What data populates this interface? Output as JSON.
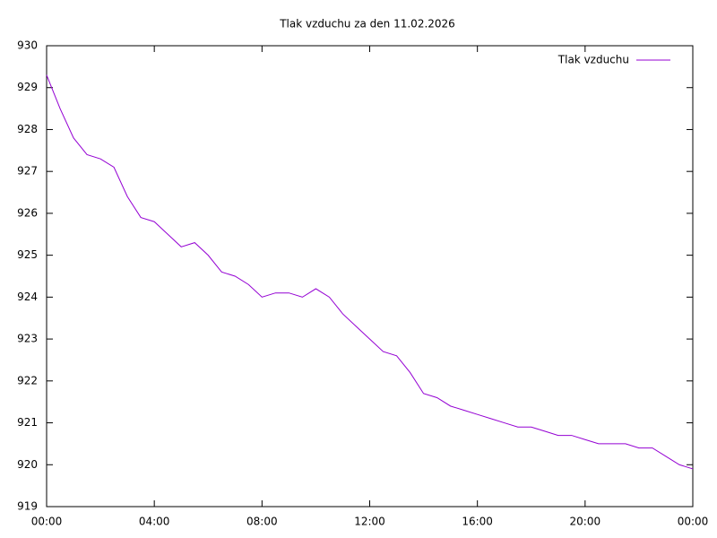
{
  "chart_data": {
    "type": "line",
    "title": "Tlak vzduchu za den 11.02.2026",
    "x": [
      0,
      0.5,
      1,
      1.5,
      2,
      2.5,
      3,
      3.5,
      4,
      4.5,
      5,
      5.5,
      6,
      6.5,
      7,
      7.5,
      8,
      8.5,
      9,
      9.5,
      10,
      10.5,
      11,
      11.5,
      12,
      12.5,
      13,
      13.5,
      14,
      14.5,
      15,
      15.5,
      16,
      16.5,
      17,
      17.5,
      18,
      18.5,
      19,
      19.5,
      20,
      20.5,
      21,
      21.5,
      22,
      22.5,
      23,
      23.5,
      24
    ],
    "series": [
      {
        "name": "Tlak vzduchu",
        "color": "#9400d3",
        "values": [
          929.3,
          928.5,
          927.8,
          927.4,
          927.3,
          927.1,
          926.4,
          925.9,
          925.8,
          925.5,
          925.2,
          925.3,
          925.0,
          924.6,
          924.5,
          924.3,
          924.0,
          924.1,
          924.1,
          924.0,
          924.2,
          924.0,
          923.6,
          923.3,
          923.0,
          922.7,
          922.6,
          922.2,
          921.7,
          921.6,
          921.4,
          921.3,
          921.2,
          921.1,
          921.0,
          920.9,
          920.9,
          920.8,
          920.7,
          920.7,
          920.6,
          920.5,
          920.5,
          920.5,
          920.4,
          920.4,
          920.2,
          920.0,
          919.9
        ]
      }
    ],
    "xlim": [
      0,
      24
    ],
    "xticks": [
      {
        "value": 0,
        "label": "00:00"
      },
      {
        "value": 4,
        "label": "04:00"
      },
      {
        "value": 8,
        "label": "08:00"
      },
      {
        "value": 12,
        "label": "12:00"
      },
      {
        "value": 16,
        "label": "16:00"
      },
      {
        "value": 20,
        "label": "20:00"
      },
      {
        "value": 24,
        "label": "00:00"
      }
    ],
    "ylim": [
      919,
      930
    ],
    "yticks": [
      919,
      920,
      921,
      922,
      923,
      924,
      925,
      926,
      927,
      928,
      929,
      930
    ],
    "legend": "top-right"
  }
}
